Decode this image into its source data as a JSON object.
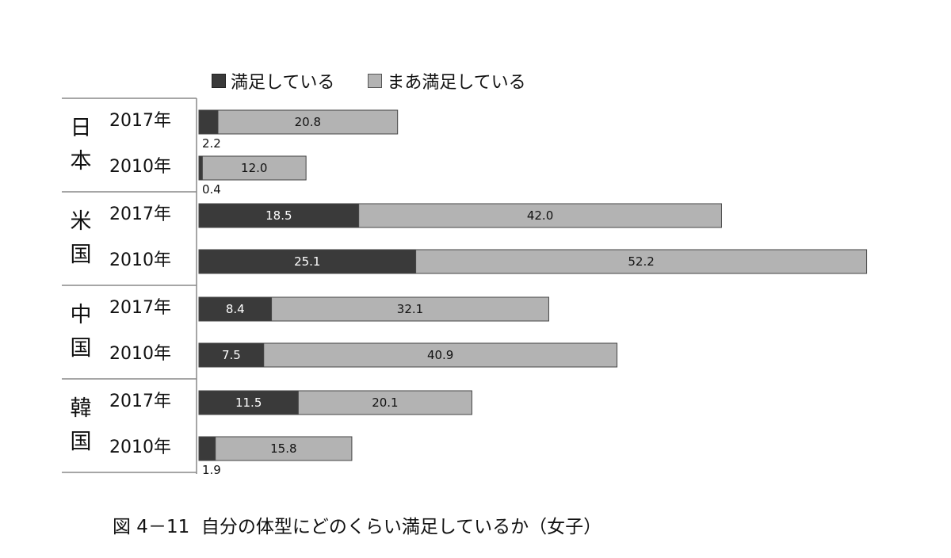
{
  "legend": [
    {
      "label": "満足している",
      "color": "#3a3a3a"
    },
    {
      "label": "まあ満足している",
      "color": "#b3b3b3"
    }
  ],
  "caption": "図 4－11  自分の体型にどのくらい満足しているか（女子）",
  "chart_data": {
    "type": "bar",
    "orientation": "horizontal",
    "stacked": true,
    "groups": [
      {
        "country": "日本",
        "rows": [
          {
            "year": "2017年",
            "values": [
              2.2,
              20.8
            ]
          },
          {
            "year": "2010年",
            "values": [
              0.4,
              12.0
            ]
          }
        ]
      },
      {
        "country": "米国",
        "rows": [
          {
            "year": "2017年",
            "values": [
              18.5,
              42.0
            ]
          },
          {
            "year": "2010年",
            "values": [
              25.1,
              52.2
            ]
          }
        ]
      },
      {
        "country": "中国",
        "rows": [
          {
            "year": "2017年",
            "values": [
              8.4,
              32.1
            ]
          },
          {
            "year": "2010年",
            "values": [
              7.5,
              40.9
            ]
          }
        ]
      },
      {
        "country": "韓国",
        "rows": [
          {
            "year": "2017年",
            "values": [
              11.5,
              20.1
            ]
          },
          {
            "year": "2010年",
            "values": [
              1.9,
              15.8
            ]
          }
        ]
      }
    ],
    "series": [
      {
        "name": "満足している",
        "color": "#3a3a3a"
      },
      {
        "name": "まあ満足している",
        "color": "#b3b3b3"
      }
    ],
    "data_label_texts": [
      [
        "2.2",
        "20.8",
        "0.4",
        "12.0"
      ],
      [
        "18.5",
        "42.0",
        "25.1",
        "52.2"
      ],
      [
        "8.4",
        "32.1",
        "7.5",
        "40.9"
      ],
      [
        "11.5",
        "20.1",
        "1.9",
        "15.8"
      ]
    ],
    "xlim": [
      0,
      100
    ],
    "grid": false,
    "legend_position": "top"
  }
}
